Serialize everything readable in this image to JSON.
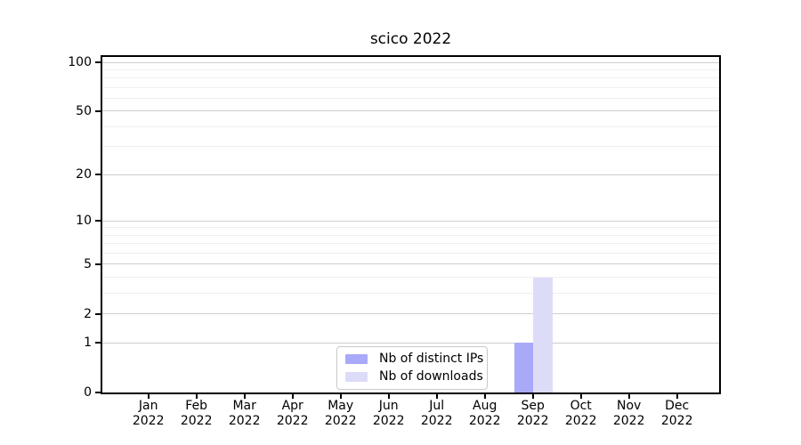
{
  "chart_data": {
    "type": "bar",
    "title": "scico 2022",
    "categories": [
      "Jan 2022",
      "Feb 2022",
      "Mar 2022",
      "Apr 2022",
      "May 2022",
      "Jun 2022",
      "Jul 2022",
      "Aug 2022",
      "Sep 2022",
      "Oct 2022",
      "Nov 2022",
      "Dec 2022"
    ],
    "x_tick_line1": [
      "Jan",
      "Feb",
      "Mar",
      "Apr",
      "May",
      "Jun",
      "Jul",
      "Aug",
      "Sep",
      "Oct",
      "Nov",
      "Dec"
    ],
    "x_tick_line2": "2022",
    "series": [
      {
        "name": "Nb of distinct IPs",
        "color": "#a9a9f9",
        "values": [
          0,
          0,
          0,
          0,
          0,
          0,
          0,
          0,
          1,
          0,
          0,
          0
        ]
      },
      {
        "name": "Nb of downloads",
        "color": "#dcdcf9",
        "values": [
          0,
          0,
          0,
          0,
          0,
          0,
          0,
          0,
          4,
          0,
          0,
          0
        ]
      }
    ],
    "xlabel": "",
    "ylabel": "",
    "yscale": "log1p",
    "ylim": [
      0,
      110
    ],
    "y_ticks": [
      0,
      1,
      2,
      5,
      10,
      20,
      50,
      100
    ],
    "y_major_gridlines": [
      1,
      2,
      5,
      10,
      20,
      50,
      100
    ],
    "y_minor_gridlines": [
      3,
      4,
      6,
      7,
      8,
      9,
      30,
      40,
      60,
      70,
      80,
      90
    ],
    "grid": true,
    "legend_position": "lower center"
  },
  "colors": {
    "background": "#ffffff",
    "spine": "#000000",
    "grid_major": "#cdcdcd",
    "grid_minor": "#efefef",
    "text": "#000000",
    "legend_border": "#c8c8c8",
    "legend_background": "#ffffff"
  }
}
